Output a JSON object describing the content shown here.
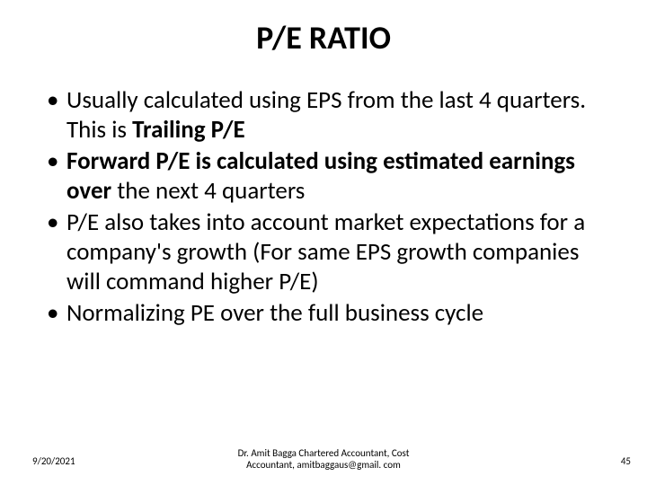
{
  "slide": {
    "title": "P/E RATIO",
    "bullets": [
      {
        "runs": [
          {
            "text": "Usually calculated using EPS from the last 4 quarters. This is ",
            "bold": false
          },
          {
            "text": "Trailing P/E",
            "bold": true
          }
        ]
      },
      {
        "runs": [
          {
            "text": "Forward P/E is calculated using estimated earnings over ",
            "bold": true
          },
          {
            "text": "the next 4 quarters",
            "bold": false
          }
        ]
      },
      {
        "runs": [
          {
            "text": "P/E also takes into account market expectations for a company's growth (For same EPS growth companies will command higher P/E)",
            "bold": false
          }
        ]
      },
      {
        "runs": [
          {
            "text": "Normalizing PE over the full business cycle",
            "bold": false
          }
        ]
      }
    ],
    "footer": {
      "date": "9/20/2021",
      "center_line1": "Dr. Amit Bagga Chartered Accountant, Cost",
      "center_line2": "Accountant, amitbaggaus@gmail. com",
      "page": "45"
    },
    "style": {
      "background_color": "#ffffff",
      "text_color": "#000000",
      "title_fontsize": 36,
      "body_fontsize": 27,
      "footer_fontsize": 11
    }
  }
}
